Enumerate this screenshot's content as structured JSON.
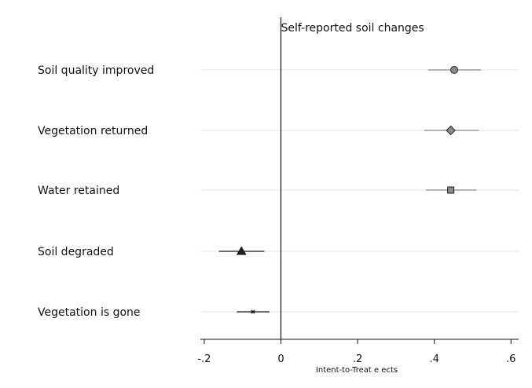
{
  "chart_data": {
    "type": "scatter",
    "title": "Self-reported soil changes",
    "xlabel": "Intent-to-Treat e  ects",
    "ylabel": "",
    "xlim": [
      -0.21,
      0.62
    ],
    "xticks": [
      -0.2,
      0,
      0.2,
      0.4,
      0.6
    ],
    "xtick_labels": [
      "-.2",
      "0",
      ".2",
      ".4",
      ".6"
    ],
    "reference_line": 0,
    "grid": "horizontal",
    "categories": [
      "Soil quality improved",
      "Vegetation returned",
      "Water retained",
      "Soil degraded",
      "Vegetation is gone"
    ],
    "series": [
      {
        "estimate": 0.452,
        "ci": [
          0.384,
          0.522
        ],
        "marker": "circle",
        "fill": "#8a8a8a"
      },
      {
        "estimate": 0.443,
        "ci": [
          0.374,
          0.516
        ],
        "marker": "diamond",
        "fill": "#8a8a8a"
      },
      {
        "estimate": 0.443,
        "ci": [
          0.378,
          0.51
        ],
        "marker": "square",
        "fill": "#8a8a8a"
      },
      {
        "estimate": -0.103,
        "ci": [
          -0.162,
          -0.043
        ],
        "marker": "triangle",
        "fill": "#222222"
      },
      {
        "estimate": -0.073,
        "ci": [
          -0.115,
          -0.03
        ],
        "marker": "x",
        "fill": "#222222"
      }
    ],
    "colors": {
      "ci_line_gray": "#888888",
      "ci_line_dark": "#111111",
      "grid": "#e6e6e6",
      "axis": "#111111"
    }
  }
}
